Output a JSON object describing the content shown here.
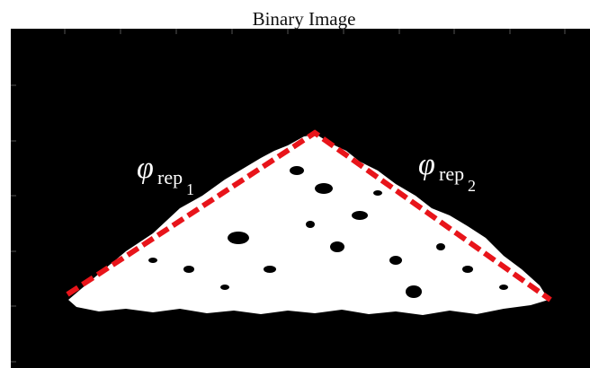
{
  "title": "Binary Image",
  "annotations": [
    {
      "symbol": "φ",
      "subscript": "rep",
      "index": "1"
    },
    {
      "symbol": "φ",
      "subscript": "rep",
      "index": "2"
    }
  ]
}
